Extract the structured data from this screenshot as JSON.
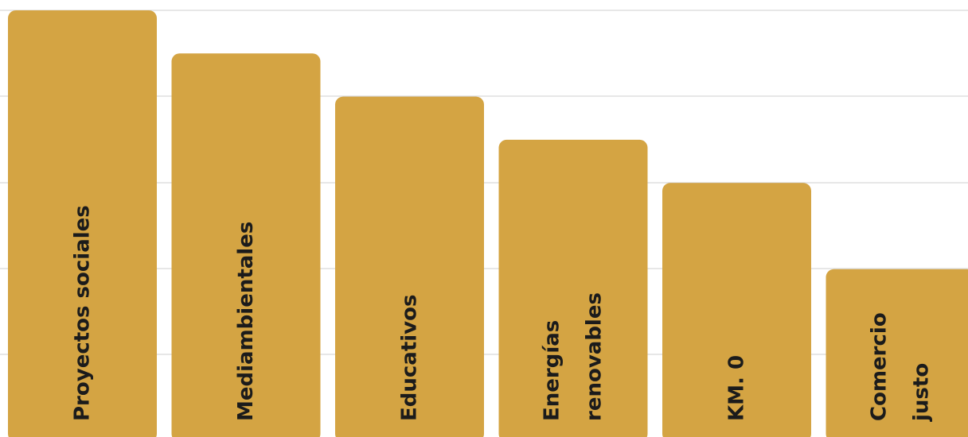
{
  "chart_data": {
    "type": "bar",
    "orientation": "vertical",
    "categories": [
      [
        "Proyectos sociales"
      ],
      [
        "Mediambientales"
      ],
      [
        "Educativos"
      ],
      [
        "Energías",
        "renovables"
      ],
      [
        "KM. 0"
      ],
      [
        "Comercio",
        "justo"
      ]
    ],
    "values": [
      100,
      90,
      80,
      70,
      60,
      40
    ],
    "ylim": [
      0,
      100
    ],
    "grid": true,
    "legend": "none",
    "title": "",
    "xlabel": "",
    "ylabel": ""
  },
  "colors": {
    "bar": "#d4a443",
    "gridline": "#cfcfcf",
    "label": "#1b1b1b",
    "background": "#ffffff"
  }
}
